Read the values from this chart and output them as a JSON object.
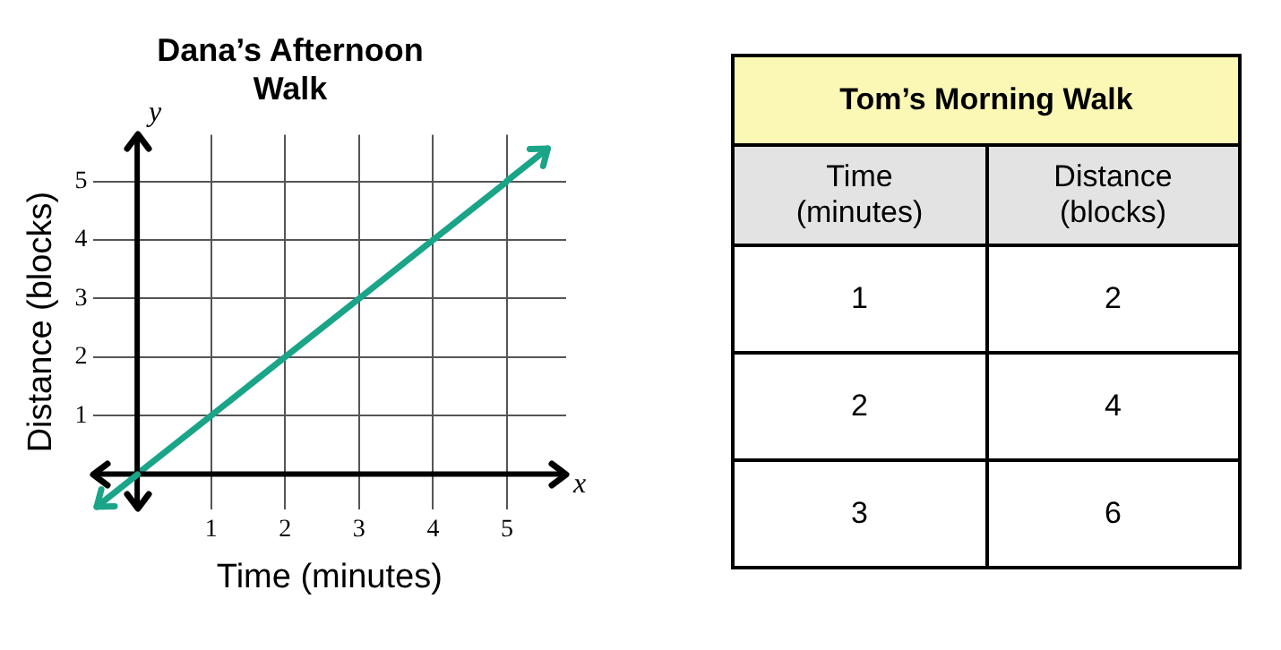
{
  "chart_data": [
    {
      "type": "line",
      "title": "Dana’s Afternoon Walk",
      "xlabel": "Time (minutes)",
      "ylabel": "Distance (blocks)",
      "annotations": [
        "x",
        "y"
      ],
      "x": [
        0,
        1,
        2,
        3,
        4,
        5
      ],
      "series": [
        {
          "color": "#1aa488",
          "values": [
            0,
            1,
            2,
            3,
            4,
            5
          ]
        }
      ],
      "xlim": [
        -0.6,
        5.8
      ],
      "ylim": [
        -0.6,
        5.8
      ],
      "xticks": [
        {
          "value": 0,
          "label": null
        },
        1,
        2,
        3,
        4,
        5
      ],
      "yticks": [
        {
          "value": 0,
          "label": null
        },
        1,
        2,
        3,
        4,
        5
      ],
      "grid": true,
      "legend": false,
      "marker": "none",
      "line_style": "solid"
    },
    {
      "type": "other",
      "title": "Tom’s Morning Walk",
      "annotations": [
        "Time (minutes)",
        "Distance (blocks)",
        "1",
        "2",
        "2",
        "4",
        "3",
        "6"
      ]
    }
  ]
}
